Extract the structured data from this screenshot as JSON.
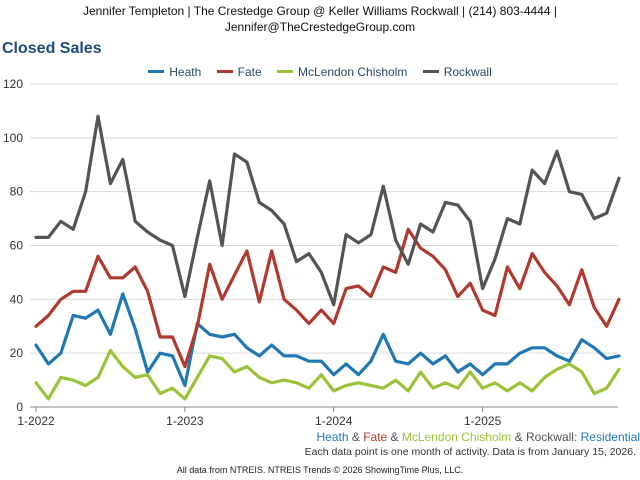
{
  "header": {
    "line1": "Jennifer Templeton | The Crestedge Group @ Keller Williams Rockwall | (214) 803-4444 |",
    "line2": "Jennifer@TheCrestedgeGroup.com"
  },
  "subtitle": {
    "parts": [
      {
        "text": "Heath",
        "color": "#1f77b4"
      },
      {
        "text": " & ",
        "color": "#555555"
      },
      {
        "text": "Fate",
        "color": "#b03a2e"
      },
      {
        "text": " & ",
        "color": "#555555"
      },
      {
        "text": "McLendon Chisholm",
        "color": "#9ac33a"
      },
      {
        "text": " & ",
        "color": "#555555"
      },
      {
        "text": "Rockwall",
        "color": "#555555"
      },
      {
        "text": ": ",
        "color": "#555555"
      },
      {
        "text": "Residential",
        "color": "#1f77b4"
      }
    ]
  },
  "note": "Each data point is one month of activity. Data is from January 15, 2026.",
  "footer": "All data from NTREIS. NTREIS Trends © 2026 ShowingTime Plus, LLC.",
  "chart_data": {
    "type": "line",
    "title": "Closed Sales",
    "x_start": "2022-01",
    "x_tick_labels": [
      "1-2022",
      "1-2023",
      "1-2024",
      "1-2025"
    ],
    "x_tick_index": [
      0,
      12,
      24,
      36
    ],
    "ylim": [
      0,
      120
    ],
    "y_ticks": [
      0,
      20,
      40,
      60,
      80,
      100,
      120
    ],
    "grid": true,
    "legend_position": "top-center",
    "series": [
      {
        "name": "Heath",
        "color": "#1f77b4",
        "values": [
          23,
          16,
          20,
          34,
          33,
          36,
          27,
          42,
          29,
          13,
          20,
          19,
          8,
          31,
          27,
          26,
          27,
          22,
          19,
          23,
          19,
          19,
          17,
          17,
          12,
          16,
          12,
          17,
          27,
          17,
          16,
          20,
          16,
          19,
          13,
          16,
          12,
          16,
          16,
          20,
          22,
          22,
          19,
          17,
          25,
          22,
          18,
          19
        ]
      },
      {
        "name": "Fate",
        "color": "#b03a2e",
        "values": [
          30,
          34,
          40,
          43,
          43,
          56,
          48,
          48,
          52,
          43,
          26,
          26,
          15,
          30,
          53,
          40,
          49,
          58,
          39,
          58,
          40,
          36,
          31,
          36,
          31,
          44,
          45,
          41,
          52,
          50,
          66,
          59,
          56,
          51,
          41,
          46,
          36,
          34,
          52,
          44,
          57,
          50,
          45,
          38,
          51,
          37,
          30,
          40
        ]
      },
      {
        "name": "McLendon Chisholm",
        "color": "#9ac33a",
        "values": [
          9,
          3,
          11,
          10,
          8,
          11,
          21,
          15,
          11,
          12,
          5,
          7,
          3,
          11,
          19,
          18,
          13,
          15,
          11,
          9,
          10,
          9,
          7,
          12,
          6,
          8,
          9,
          8,
          7,
          10,
          6,
          13,
          7,
          9,
          7,
          13,
          7,
          9,
          6,
          9,
          6,
          11,
          14,
          16,
          13,
          5,
          7,
          14
        ]
      },
      {
        "name": "Rockwall",
        "color": "#545454",
        "values": [
          63,
          63,
          69,
          66,
          80,
          108,
          83,
          92,
          69,
          65,
          62,
          60,
          41,
          63,
          84,
          60,
          94,
          91,
          76,
          73,
          68,
          54,
          57,
          50,
          38,
          64,
          61,
          64,
          82,
          62,
          53,
          68,
          65,
          76,
          75,
          69,
          44,
          55,
          70,
          68,
          88,
          83,
          95,
          80,
          79,
          70,
          72,
          85
        ]
      }
    ]
  }
}
